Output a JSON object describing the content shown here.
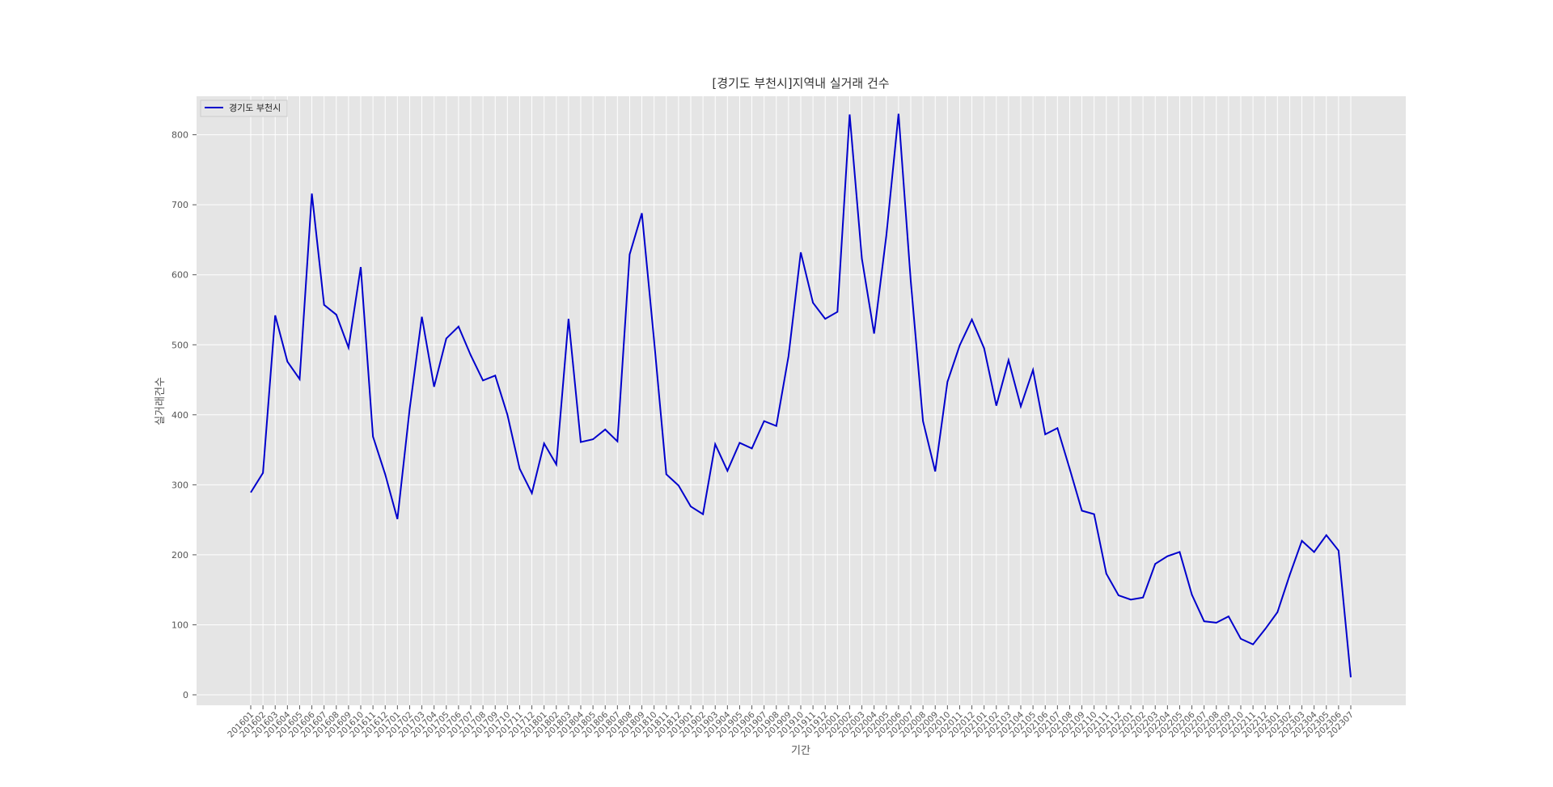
{
  "chart_data": {
    "type": "line",
    "title": "[경기도 부천시]지역내 실거래 건수",
    "xlabel": "기간",
    "ylabel": "실거래건수",
    "ylim": [
      -15,
      855
    ],
    "yticks": [
      0,
      100,
      200,
      300,
      400,
      500,
      600,
      700,
      800
    ],
    "grid": true,
    "legend_position": "top-left",
    "background": "#e5e5e5",
    "line_color": "#0000cc",
    "categories": [
      "201601",
      "201602",
      "201603",
      "201604",
      "201605",
      "201606",
      "201607",
      "201608",
      "201609",
      "201610",
      "201611",
      "201612",
      "201701",
      "201702",
      "201703",
      "201704",
      "201705",
      "201706",
      "201707",
      "201708",
      "201709",
      "201710",
      "201711",
      "201712",
      "201801",
      "201802",
      "201803",
      "201804",
      "201805",
      "201806",
      "201807",
      "201808",
      "201809",
      "201810",
      "201811",
      "201812",
      "201901",
      "201902",
      "201903",
      "201904",
      "201905",
      "201906",
      "201907",
      "201908",
      "201909",
      "201910",
      "201911",
      "201912",
      "202001",
      "202002",
      "202003",
      "202004",
      "202005",
      "202006",
      "202007",
      "202008",
      "202009",
      "202010",
      "202011",
      "202012",
      "202101",
      "202102",
      "202103",
      "202104",
      "202105",
      "202106",
      "202107",
      "202108",
      "202109",
      "202110",
      "202111",
      "202112",
      "202201",
      "202202",
      "202203",
      "202204",
      "202205",
      "202206",
      "202207",
      "202208",
      "202209",
      "202210",
      "202211",
      "202212",
      "202301",
      "202302",
      "202303",
      "202304",
      "202305",
      "202306",
      "202307"
    ],
    "series": [
      {
        "name": "경기도 부천시",
        "values": [
          289,
          317,
          542,
          476,
          451,
          716,
          557,
          543,
          496,
          611,
          369,
          315,
          251,
          408,
          540,
          440,
          509,
          526,
          485,
          449,
          456,
          400,
          323,
          288,
          359,
          329,
          537,
          361,
          365,
          379,
          362,
          629,
          688,
          506,
          315,
          299,
          269,
          258,
          358,
          320,
          360,
          352,
          391,
          384,
          484,
          632,
          560,
          537,
          547,
          829,
          623,
          516,
          656,
          830,
          591,
          391,
          319,
          447,
          499,
          536,
          495,
          413,
          478,
          412,
          464,
          372,
          381,
          323,
          263,
          258,
          173,
          142,
          136,
          139,
          187,
          198,
          204,
          143,
          105,
          103,
          112,
          80,
          72,
          94,
          118,
          171,
          220,
          204,
          228,
          206,
          25
        ]
      }
    ]
  }
}
